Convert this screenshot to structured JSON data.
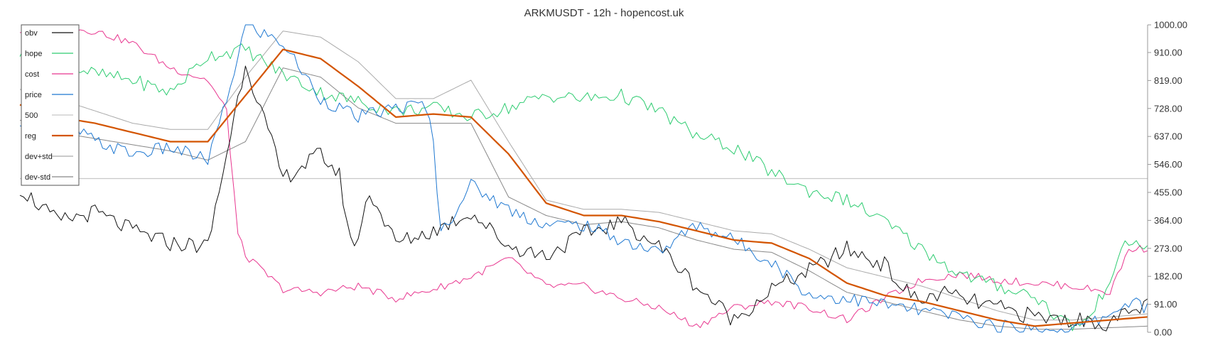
{
  "chart_data": {
    "type": "line",
    "title": "ARKMUSDT - 12h - hopencost.uk",
    "xlabel": "",
    "ylabel": "",
    "ylim": [
      0,
      1000
    ],
    "y_ticks": [
      "1000.00",
      "910.00",
      "819.00",
      "728.00",
      "637.00",
      "546.00",
      "455.00",
      "364.00",
      "273.00",
      "182.00",
      "91.00",
      "0.00"
    ],
    "y_tick_values": [
      1000,
      910,
      819,
      728,
      637,
      546,
      455,
      364,
      273,
      182,
      91,
      0
    ],
    "hline": 500,
    "n_points": 300,
    "legend_position": "top-left",
    "grid": false,
    "series": [
      {
        "name": "obv",
        "color": "#111111",
        "x": [
          0,
          10,
          20,
          30,
          40,
          50,
          60,
          70,
          80,
          85,
          88,
          90,
          93,
          95,
          100,
          110,
          120,
          130,
          140,
          150,
          160,
          170,
          180,
          190,
          200,
          210,
          220,
          230,
          235,
          240,
          245,
          250,
          260,
          270,
          280,
          290,
          300
        ],
        "values": [
          470,
          360,
          390,
          330,
          290,
          280,
          880,
          500,
          580,
          510,
          290,
          310,
          460,
          410,
          290,
          330,
          390,
          280,
          250,
          320,
          360,
          280,
          150,
          40,
          140,
          200,
          270,
          220,
          140,
          100,
          130,
          110,
          80,
          50,
          40,
          30,
          90
        ]
      },
      {
        "name": "hope",
        "color": "#2ecc71",
        "x": [
          0,
          10,
          20,
          30,
          40,
          50,
          60,
          70,
          80,
          90,
          100,
          110,
          120,
          130,
          140,
          150,
          160,
          170,
          180,
          190,
          200,
          210,
          220,
          230,
          240,
          250,
          260,
          270,
          275,
          280,
          285,
          290,
          295,
          300
        ],
        "values": [
          910,
          880,
          840,
          820,
          780,
          900,
          920,
          840,
          780,
          750,
          720,
          730,
          700,
          730,
          770,
          760,
          770,
          720,
          640,
          600,
          520,
          460,
          430,
          360,
          270,
          190,
          150,
          120,
          60,
          20,
          50,
          180,
          300,
          270
        ]
      },
      {
        "name": "cost",
        "color": "#e8368f",
        "x": [
          0,
          10,
          20,
          30,
          40,
          50,
          55,
          58,
          60,
          70,
          80,
          90,
          100,
          110,
          120,
          130,
          140,
          150,
          160,
          170,
          180,
          190,
          200,
          210,
          220,
          230,
          240,
          250,
          260,
          270,
          280,
          290,
          295,
          300
        ],
        "values": [
          980,
          990,
          980,
          940,
          860,
          820,
          720,
          320,
          250,
          140,
          130,
          150,
          110,
          140,
          180,
          240,
          150,
          150,
          110,
          80,
          20,
          80,
          100,
          80,
          40,
          110,
          170,
          190,
          170,
          160,
          150,
          130,
          270,
          273
        ]
      },
      {
        "name": "price",
        "color": "#1f78d1",
        "x": [
          0,
          10,
          20,
          30,
          40,
          50,
          55,
          60,
          70,
          80,
          90,
          100,
          108,
          110,
          112,
          120,
          130,
          140,
          150,
          160,
          170,
          180,
          190,
          200,
          210,
          220,
          230,
          240,
          250,
          260,
          270,
          280,
          285,
          290,
          295,
          300
        ],
        "values": [
          650,
          700,
          620,
          580,
          600,
          560,
          750,
          1000,
          940,
          760,
          700,
          730,
          740,
          620,
          320,
          480,
          400,
          350,
          350,
          300,
          260,
          350,
          300,
          230,
          120,
          110,
          90,
          70,
          50,
          20,
          10,
          10,
          30,
          60,
          100,
          80
        ]
      },
      {
        "name": "500",
        "color": "#c8c8c8",
        "x": [
          0,
          300
        ],
        "values": [
          500,
          500
        ]
      },
      {
        "name": "reg",
        "color": "#d35400",
        "x": [
          0,
          10,
          20,
          30,
          40,
          50,
          60,
          70,
          80,
          90,
          100,
          110,
          120,
          130,
          140,
          150,
          160,
          170,
          180,
          190,
          200,
          210,
          220,
          230,
          240,
          250,
          260,
          270,
          280,
          290,
          300
        ],
        "values": [
          740,
          700,
          680,
          650,
          620,
          620,
          770,
          920,
          890,
          800,
          700,
          710,
          700,
          580,
          420,
          380,
          380,
          360,
          330,
          300,
          290,
          240,
          160,
          120,
          100,
          70,
          40,
          20,
          30,
          40,
          50
        ]
      },
      {
        "name": "dev+std",
        "color": "#aaaaaa",
        "x": [
          0,
          10,
          20,
          30,
          40,
          50,
          60,
          70,
          80,
          90,
          100,
          110,
          120,
          130,
          140,
          150,
          160,
          170,
          180,
          190,
          200,
          210,
          220,
          230,
          240,
          250,
          260,
          270,
          280,
          290,
          300
        ],
        "values": [
          790,
          760,
          720,
          680,
          660,
          660,
          830,
          980,
          960,
          880,
          760,
          760,
          820,
          620,
          430,
          400,
          400,
          390,
          360,
          330,
          320,
          270,
          210,
          180,
          150,
          110,
          70,
          40,
          40,
          50,
          60
        ]
      },
      {
        "name": "dev-std",
        "color": "#888888",
        "x": [
          0,
          10,
          20,
          30,
          40,
          50,
          60,
          70,
          80,
          90,
          100,
          110,
          120,
          130,
          140,
          150,
          160,
          170,
          180,
          190,
          200,
          210,
          220,
          230,
          240,
          250,
          260,
          270,
          280,
          290,
          300
        ],
        "values": [
          690,
          650,
          630,
          610,
          590,
          560,
          620,
          860,
          830,
          730,
          680,
          680,
          680,
          440,
          380,
          350,
          360,
          340,
          300,
          270,
          260,
          200,
          130,
          100,
          70,
          40,
          20,
          10,
          10,
          15,
          20
        ]
      }
    ]
  }
}
